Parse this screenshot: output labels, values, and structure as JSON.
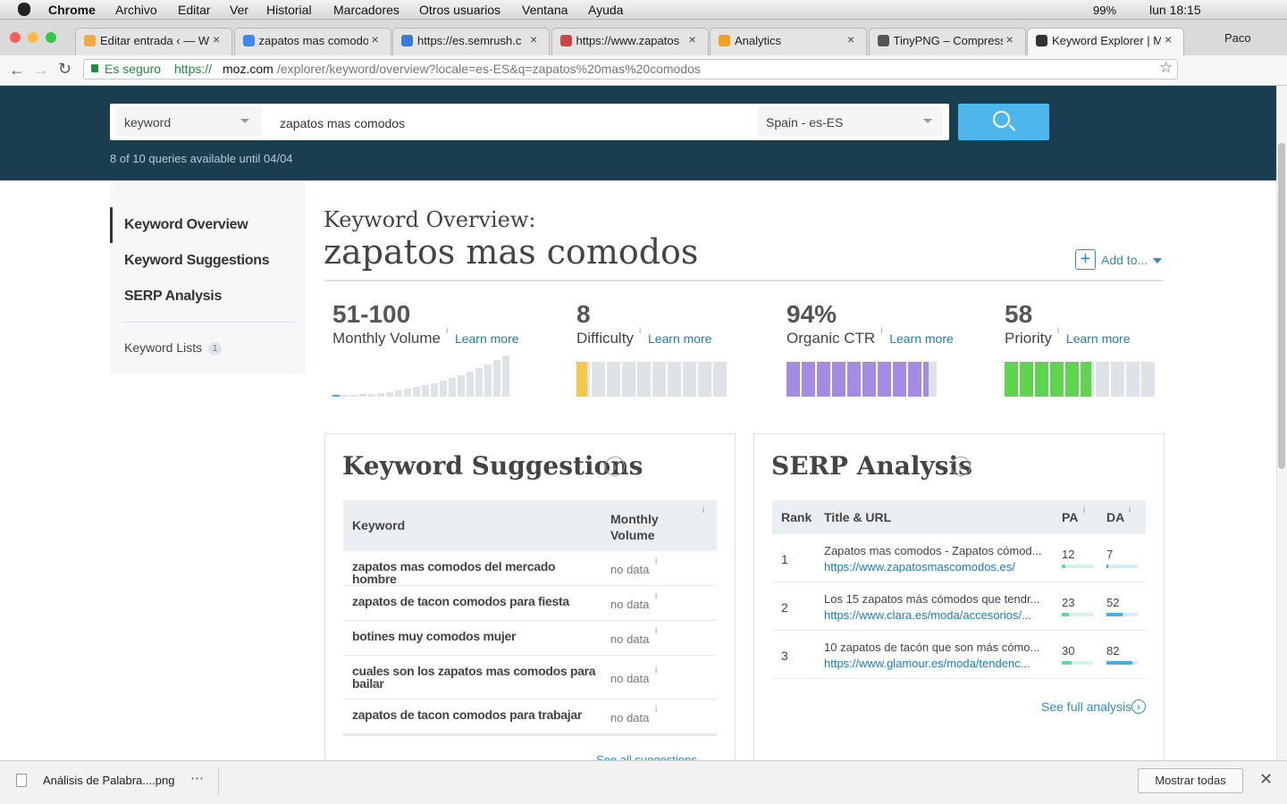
{
  "menubar": {
    "app": "Chrome",
    "items": [
      "Archivo",
      "Editar",
      "Ver",
      "Historial",
      "Marcadores",
      "Otros usuarios",
      "Ventana",
      "Ayuda"
    ],
    "battery": "99%",
    "clock": "lun 18:15"
  },
  "tabs": [
    "Editar entrada ‹ — W",
    "zapatos mas comodo",
    "https://es.semrush.c",
    "https://www.zapatos",
    "Analytics",
    "TinyPNG – Compress",
    "Keyword Explorer | M"
  ],
  "profile": "Paco",
  "address": {
    "secure": "Es seguro",
    "scheme": "https://",
    "host": "moz.com",
    "path": "/explorer/keyword/overview?locale=es-ES&q=zapatos%20mas%20comodos"
  },
  "search": {
    "type": "keyword",
    "query": "zapatos mas comodos",
    "locale": "Spain - es-ES",
    "quota": "8 of 10 queries available until 04/04"
  },
  "sidebar": {
    "items": [
      "Keyword Overview",
      "Keyword Suggestions",
      "SERP Analysis"
    ],
    "lists": "Keyword Lists",
    "lists_count": 1
  },
  "overview": {
    "heading": "Keyword Overview:",
    "keyword": "zapatos mas comodos",
    "add": "Add to..."
  },
  "metrics": [
    {
      "value": "51-100",
      "label": "Monthly Volume",
      "link": "Learn more"
    },
    {
      "value": 8,
      "label": "Difficulty",
      "link": "Learn more",
      "color": "#f7c948"
    },
    {
      "value": 94,
      "value_label": "94%",
      "label": "Organic CTR",
      "link": "Learn more",
      "color": "#a68be3"
    },
    {
      "value": 58,
      "label": "Priority",
      "link": "Learn more",
      "color": "#5fd44e"
    }
  ],
  "suggestions": {
    "title": "Keyword Suggestions",
    "columns": [
      "Keyword",
      "Monthly Volume"
    ],
    "rows": [
      [
        "zapatos mas comodos del mercado hombre",
        "no data"
      ],
      [
        "zapatos de tacon comodos para fiesta",
        "no data"
      ],
      [
        "botines muy comodos mujer",
        "no data"
      ],
      [
        "cuales son los zapatos mas comodos para bailar",
        "no data"
      ],
      [
        "zapatos de tacon comodos para trabajar",
        "no data"
      ]
    ],
    "more": "See all suggestions"
  },
  "serp": {
    "title": "SERP Analysis",
    "columns": [
      "Rank",
      "Title & URL",
      "PA",
      "DA"
    ],
    "rows": [
      {
        "rank": 1,
        "title": "Zapatos mas comodos - Zapatos cómod...",
        "url": "https://www.zapatosmascomodos.es/",
        "pa": 12,
        "da": 7
      },
      {
        "rank": 2,
        "title": "Los 15 zapatos más cómodos que tendr...",
        "url": "https://www.clara.es/moda/accesorios/...",
        "pa": 23,
        "da": 52
      },
      {
        "rank": 3,
        "title": "10 zapatos de tacón que son más cómo...",
        "url": "https://www.glamour.es/moda/tendenc...",
        "pa": 30,
        "da": 82
      }
    ],
    "more": "See full analysis"
  },
  "download": {
    "file": "Análisis de Palabra....png",
    "show_all": "Mostrar todas"
  }
}
